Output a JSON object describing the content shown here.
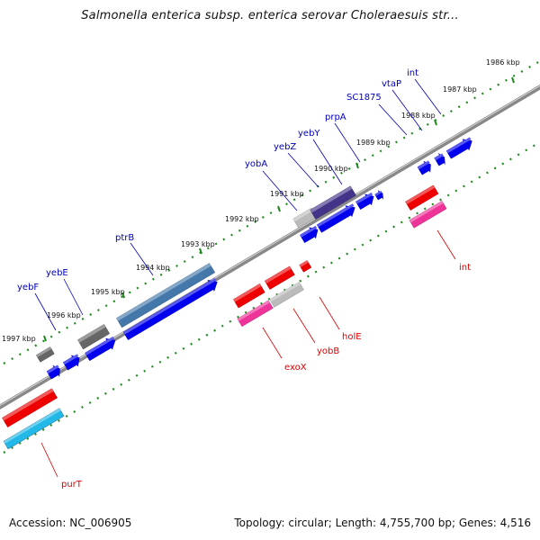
{
  "title": "Salmonella enterica subsp. enterica serovar Choleraesuis str...",
  "footer": {
    "accession": "Accession: NC_006905",
    "info": "Topology: circular; Length: 4,755,700 bp; Genes: 4,516"
  },
  "scale_labels": [
    "1986 kbp",
    "1987 kbp",
    "1988 kbp",
    "1989 kbp",
    "1990 kbp",
    "1991 kbp",
    "1992 kbp",
    "1993 kbp",
    "1994 kbp",
    "1995 kbp",
    "1996 kbp",
    "1997 kbp"
  ],
  "genes_top": [
    "int",
    "vtaP",
    "SC1875",
    "prpA",
    "yebY",
    "yebZ",
    "yobA",
    "ptrB",
    "yebE",
    "yebF"
  ],
  "genes_bottom": [
    "int",
    "holE",
    "yobB",
    "exoX",
    "purT"
  ],
  "colors": {
    "top_label": "#0000bb",
    "bottom_label": "#dd0000",
    "axis": "#888888",
    "ticks": "#1f8a1f",
    "cds_forward": "#0000ee",
    "cds_reverse": "#ee0000",
    "pink": "#ee3399",
    "cyan": "#22b8e8",
    "steel": "#4477aa",
    "grey": "#666666",
    "light_grey": "#bbbbbb",
    "purple": "#443388"
  }
}
